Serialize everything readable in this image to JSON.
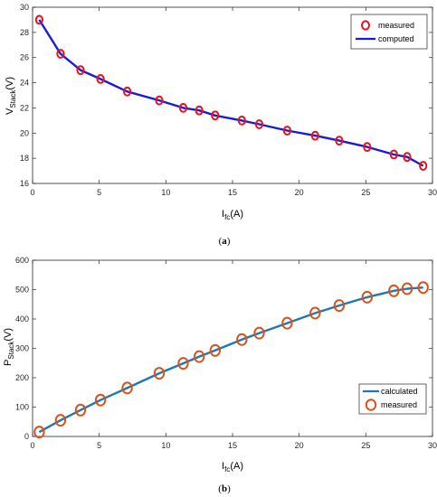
{
  "chart_data": [
    {
      "type": "line",
      "caption": "(a)",
      "xlabel": "I",
      "xlabel_sub": "fc",
      "xlabel_unit": "(A)",
      "ylabel": "V",
      "ylabel_sub": "Stack",
      "ylabel_unit": "(V)",
      "xlim": [
        0,
        30
      ],
      "ylim": [
        16,
        30
      ],
      "xticks": [
        0,
        5,
        10,
        15,
        20,
        25,
        30
      ],
      "yticks": [
        16,
        18,
        20,
        22,
        24,
        26,
        28,
        30
      ],
      "legend_position": "top-right",
      "grid": false,
      "series": [
        {
          "name": "measured",
          "style": "marker",
          "color": "#e8141b",
          "x": [
            0.5,
            2.1,
            3.6,
            5.1,
            7.1,
            9.5,
            11.3,
            12.5,
            13.7,
            15.7,
            17.0,
            19.1,
            21.2,
            23.0,
            25.1,
            27.1,
            28.1,
            29.3
          ],
          "y": [
            29.0,
            26.3,
            25.0,
            24.3,
            23.3,
            22.6,
            22.0,
            21.8,
            21.4,
            21.0,
            20.7,
            20.2,
            19.8,
            19.4,
            18.9,
            18.3,
            18.1,
            17.4
          ]
        },
        {
          "name": "computed",
          "style": "line",
          "color": "#1a1adb",
          "x": [
            0.5,
            2.1,
            3.6,
            5.1,
            7.1,
            9.5,
            11.3,
            12.5,
            13.7,
            15.7,
            17.0,
            19.1,
            21.2,
            23.0,
            25.1,
            27.1,
            28.1,
            29.3
          ],
          "y": [
            29.0,
            26.3,
            25.0,
            24.3,
            23.3,
            22.6,
            22.0,
            21.8,
            21.4,
            21.0,
            20.7,
            20.2,
            19.8,
            19.4,
            18.9,
            18.3,
            18.1,
            17.4
          ]
        }
      ]
    },
    {
      "type": "line",
      "caption": "(b)",
      "xlabel": "I",
      "xlabel_sub": "fc",
      "xlabel_unit": "(A)",
      "ylabel": "P",
      "ylabel_sub": "Stack",
      "ylabel_unit": "(V)",
      "xlim": [
        0,
        30
      ],
      "ylim": [
        0,
        600
      ],
      "xticks": [
        0,
        5,
        10,
        15,
        20,
        25,
        30
      ],
      "yticks": [
        0,
        100,
        200,
        300,
        400,
        500,
        600
      ],
      "legend_position": "bottom-right",
      "grid": false,
      "series": [
        {
          "name": "calculated",
          "style": "line",
          "color": "#1f77b4",
          "x": [
            0.5,
            2.1,
            3.6,
            5.1,
            7.1,
            9.5,
            11.3,
            12.5,
            13.7,
            15.7,
            17.0,
            19.1,
            21.2,
            23.0,
            25.1,
            27.1,
            28.1,
            29.3
          ],
          "y": [
            15,
            55,
            90,
            124,
            165,
            215,
            249,
            272,
            293,
            330,
            352,
            386,
            420,
            446,
            474,
            496,
            503,
            507
          ]
        },
        {
          "name": "measured",
          "style": "marker",
          "color": "#d9531e",
          "x": [
            0.5,
            2.1,
            3.6,
            5.1,
            7.1,
            9.5,
            11.3,
            12.5,
            13.7,
            15.7,
            17.0,
            19.1,
            21.2,
            23.0,
            25.1,
            27.1,
            28.1,
            29.3
          ],
          "y": [
            15,
            55,
            90,
            124,
            165,
            215,
            249,
            272,
            293,
            330,
            352,
            386,
            420,
            446,
            474,
            496,
            503,
            507
          ]
        }
      ]
    }
  ]
}
